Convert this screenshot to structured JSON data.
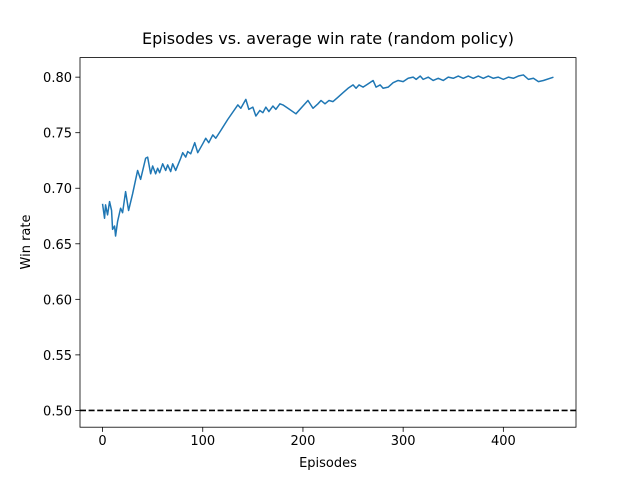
{
  "chart_data": {
    "type": "line",
    "title": "Episodes vs. average win rate (random policy)",
    "x_label": "Episodes",
    "y_label": "Win rate",
    "x": [
      0,
      2,
      3,
      5,
      7,
      9,
      10,
      12,
      13,
      15,
      18,
      20,
      23,
      26,
      30,
      35,
      38,
      43,
      45,
      48,
      50,
      53,
      55,
      57,
      60,
      63,
      65,
      68,
      70,
      73,
      78,
      80,
      83,
      85,
      88,
      92,
      95,
      100,
      103,
      106,
      110,
      113,
      118,
      125,
      135,
      138,
      143,
      146,
      150,
      153,
      157,
      160,
      163,
      166,
      170,
      173,
      177,
      180,
      185,
      193,
      200,
      205,
      210,
      215,
      218,
      222,
      226,
      230,
      235,
      240,
      245,
      250,
      253,
      256,
      260,
      265,
      270,
      273,
      277,
      280,
      285,
      290,
      295,
      300,
      305,
      310,
      313,
      317,
      320,
      325,
      330,
      335,
      340,
      345,
      350,
      355,
      360,
      365,
      370,
      375,
      380,
      385,
      390,
      395,
      400,
      405,
      410,
      415,
      420,
      425,
      430,
      435,
      440,
      450
    ],
    "series": [
      {
        "name": "Win rate",
        "color": "#1f77b4",
        "values": [
          0.686,
          0.673,
          0.685,
          0.676,
          0.688,
          0.68,
          0.663,
          0.666,
          0.657,
          0.67,
          0.682,
          0.678,
          0.697,
          0.68,
          0.695,
          0.716,
          0.708,
          0.727,
          0.728,
          0.713,
          0.72,
          0.713,
          0.718,
          0.714,
          0.722,
          0.716,
          0.721,
          0.715,
          0.722,
          0.716,
          0.727,
          0.732,
          0.728,
          0.733,
          0.731,
          0.741,
          0.732,
          0.74,
          0.745,
          0.741,
          0.748,
          0.745,
          0.752,
          0.762,
          0.775,
          0.772,
          0.78,
          0.771,
          0.773,
          0.765,
          0.77,
          0.768,
          0.773,
          0.769,
          0.774,
          0.771,
          0.776,
          0.775,
          0.772,
          0.767,
          0.774,
          0.779,
          0.772,
          0.776,
          0.779,
          0.776,
          0.779,
          0.778,
          0.782,
          0.786,
          0.79,
          0.793,
          0.79,
          0.793,
          0.791,
          0.794,
          0.797,
          0.791,
          0.793,
          0.79,
          0.791,
          0.795,
          0.797,
          0.796,
          0.799,
          0.8,
          0.798,
          0.801,
          0.798,
          0.8,
          0.797,
          0.799,
          0.797,
          0.8,
          0.799,
          0.801,
          0.799,
          0.801,
          0.799,
          0.801,
          0.799,
          0.801,
          0.799,
          0.8,
          0.798,
          0.8,
          0.799,
          0.801,
          0.802,
          0.798,
          0.799,
          0.796,
          0.797,
          0.8
        ]
      }
    ],
    "hline": {
      "value": 0.5,
      "color": "#000000",
      "style": "dashed"
    },
    "xlim": [
      -22.5,
      472.5
    ],
    "xticks": [
      0,
      100,
      200,
      300,
      400
    ],
    "ylim": [
      0.4849,
      0.8176
    ],
    "yticks": [
      {
        "value": 0.5,
        "label": "0.50"
      },
      {
        "value": 0.55,
        "label": "0.55"
      },
      {
        "value": 0.6,
        "label": "0.60"
      },
      {
        "value": 0.65,
        "label": "0.65"
      },
      {
        "value": 0.7,
        "label": "0.70"
      },
      {
        "value": 0.75,
        "label": "0.75"
      },
      {
        "value": 0.8,
        "label": "0.80"
      }
    ],
    "grid": false
  }
}
